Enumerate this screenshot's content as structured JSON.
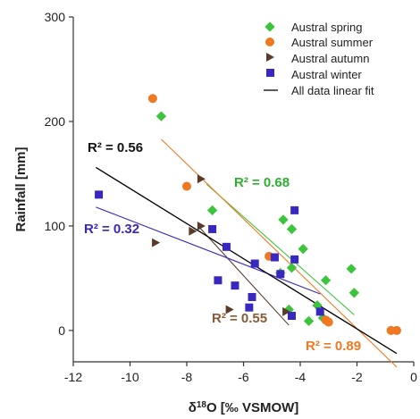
{
  "chart_data": {
    "type": "scatter",
    "xlabel": "δ18O [‰ VSMOW]",
    "xlabel_parts": {
      "prefix": "δ",
      "sup": "18",
      "suffix": "O [‰ VSMOW]"
    },
    "ylabel": "Rainfall [mm]",
    "xlim": [
      -12,
      0
    ],
    "ylim": [
      -30,
      300
    ],
    "xticks": [
      -12,
      -10,
      -8,
      -6,
      -4,
      -2,
      0
    ],
    "yticks": [
      0,
      100,
      200,
      300
    ],
    "grid": false,
    "legend_position": "top-right",
    "series": [
      {
        "name": "Austral spring",
        "marker": "diamond",
        "color": "#3cc43c",
        "points": [
          [
            -8.9,
            205
          ],
          [
            -7.1,
            115
          ],
          [
            -4.6,
            106
          ],
          [
            -4.3,
            97
          ],
          [
            -3.9,
            78
          ],
          [
            -4.3,
            60
          ],
          [
            -4.7,
            55
          ],
          [
            -3.1,
            48
          ],
          [
            -2.2,
            59
          ],
          [
            -2.1,
            36
          ],
          [
            -4.4,
            20
          ],
          [
            -3.4,
            24
          ],
          [
            -3.7,
            9
          ],
          [
            -3.2,
            12
          ]
        ],
        "fit": {
          "x": [
            -7.3,
            -2.1
          ],
          "y": [
            140,
            15
          ]
        },
        "r2_label": "R² = 0.68"
      },
      {
        "name": "Austral summer",
        "marker": "circle",
        "color": "#f07820",
        "points": [
          [
            -9.2,
            222
          ],
          [
            -8.0,
            138
          ],
          [
            -5.1,
            71
          ],
          [
            -3.1,
            10
          ],
          [
            -3.0,
            8
          ],
          [
            -0.8,
            0
          ],
          [
            -0.6,
            0
          ]
        ],
        "fit": {
          "x": [
            -8.9,
            -0.6
          ],
          "y": [
            183,
            -35
          ]
        },
        "r2_label": "R² = 0.89"
      },
      {
        "name": "Austral autumn",
        "marker": "triangle-right",
        "color": "#5a3a28",
        "points": [
          [
            -7.5,
            145
          ],
          [
            -7.8,
            95
          ],
          [
            -7.5,
            100
          ],
          [
            -9.1,
            84
          ],
          [
            -6.5,
            20
          ],
          [
            -4.5,
            18
          ]
        ],
        "fit": {
          "x": [
            -7.6,
            -4.4
          ],
          "y": [
            100,
            5
          ]
        },
        "r2_label": "R² = 0.55"
      },
      {
        "name": "Austral winter",
        "marker": "square",
        "color": "#3828c0",
        "points": [
          [
            -11.1,
            130
          ],
          [
            -7.1,
            97
          ],
          [
            -6.6,
            80
          ],
          [
            -6.9,
            48
          ],
          [
            -6.3,
            43
          ],
          [
            -5.6,
            64
          ],
          [
            -5.7,
            32
          ],
          [
            -5.8,
            22
          ],
          [
            -4.9,
            70
          ],
          [
            -4.7,
            54
          ],
          [
            -4.2,
            115
          ],
          [
            -4.2,
            68
          ],
          [
            -4.3,
            14
          ],
          [
            -3.3,
            18
          ]
        ],
        "fit": {
          "x": [
            -11.2,
            -3.3
          ],
          "y": [
            118,
            35
          ]
        },
        "r2_label": "R² = 0.32"
      }
    ],
    "overall_fit": {
      "name": "All data linear fit",
      "color": "#000000",
      "x": [
        -11.2,
        -0.6
      ],
      "y": [
        156,
        -22
      ],
      "r2_label": "R² = 0.56"
    },
    "r2_colors": {
      "overall": "#111111",
      "spring": "#2fae2f",
      "winter": "#3828c0",
      "autumn": "#8a5a35",
      "summer": "#f07820"
    }
  }
}
